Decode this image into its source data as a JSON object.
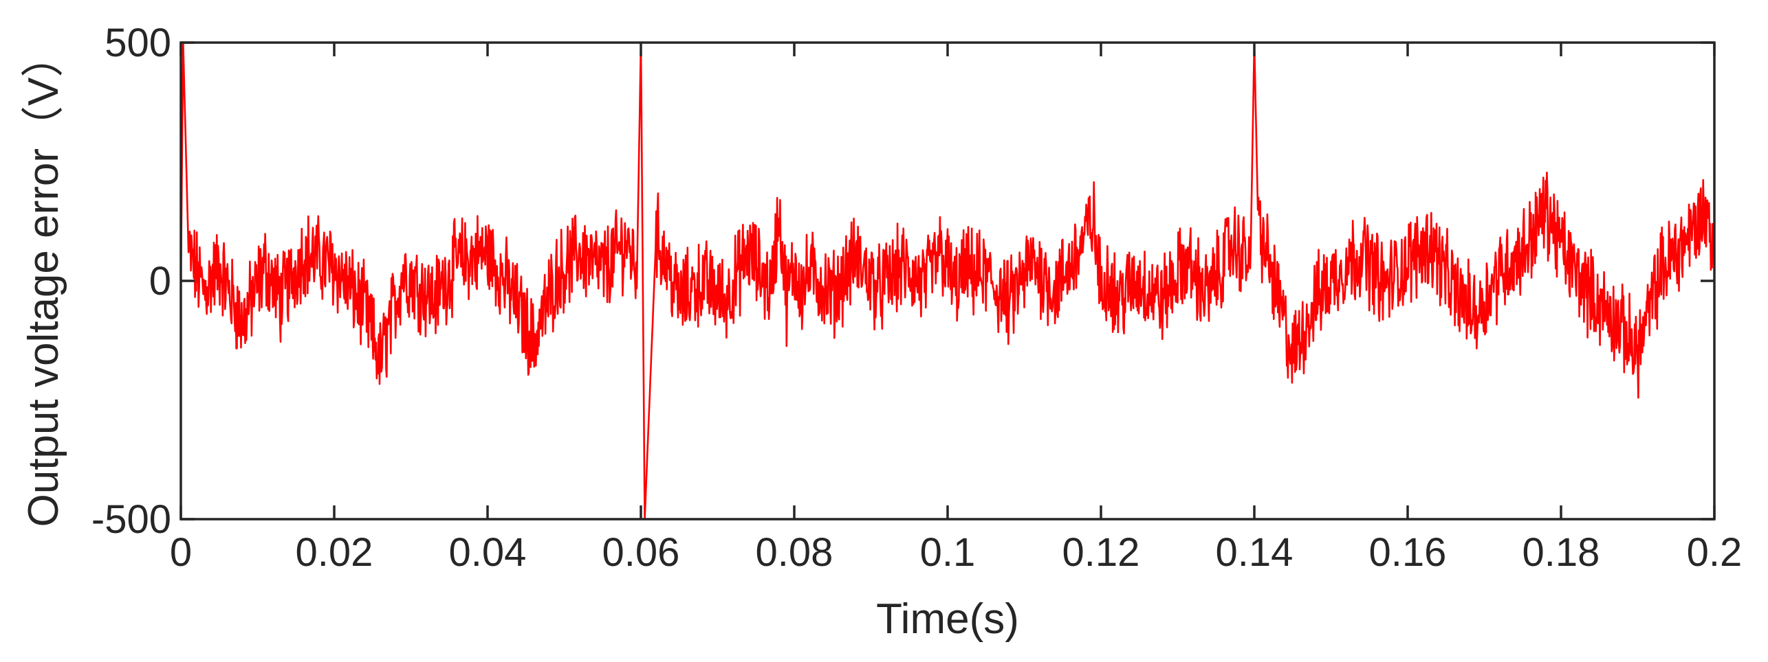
{
  "chart_data": {
    "type": "line",
    "title": "",
    "xlabel": "Time(s)",
    "ylabel": "Output voltage error（V）",
    "xlim": [
      0,
      0.2
    ],
    "ylim": [
      -500,
      500
    ],
    "xticks": [
      0,
      0.02,
      0.04,
      0.06,
      0.08,
      0.1,
      0.12,
      0.14,
      0.16,
      0.18,
      0.2
    ],
    "xtick_labels": [
      "0",
      "0.02",
      "0.04",
      "0.06",
      "0.08",
      "0.1",
      "0.12",
      "0.14",
      "0.16",
      "0.18",
      "0.2"
    ],
    "yticks": [
      -500,
      0,
      500
    ],
    "ytick_labels": [
      "-500",
      "0",
      "500"
    ],
    "grid": false,
    "legend": "none",
    "series": [
      {
        "color": "#ff0000",
        "x": [
          0,
          0.0003,
          0.001,
          0.003,
          0.005,
          0.008,
          0.011,
          0.013,
          0.016,
          0.02,
          0.024,
          0.026,
          0.029,
          0.033,
          0.036,
          0.04,
          0.043,
          0.046,
          0.049,
          0.052,
          0.055,
          0.058,
          0.0595,
          0.06,
          0.0605,
          0.062,
          0.065,
          0.068,
          0.071,
          0.074,
          0.077,
          0.078,
          0.079,
          0.08,
          0.081,
          0.082,
          0.085,
          0.088,
          0.091,
          0.094,
          0.097,
          0.099,
          0.1,
          0.101,
          0.102,
          0.105,
          0.108,
          0.111,
          0.114,
          0.117,
          0.119,
          0.12,
          0.121,
          0.122,
          0.125,
          0.128,
          0.131,
          0.134,
          0.137,
          0.1395,
          0.14,
          0.1405,
          0.142,
          0.145,
          0.148,
          0.151,
          0.154,
          0.157,
          0.16,
          0.163,
          0.166,
          0.169,
          0.172,
          0.175,
          0.178,
          0.181,
          0.184,
          0.187,
          0.19,
          0.193,
          0.196,
          0.199,
          0.2
        ],
        "y": [
          0,
          500,
          60,
          -20,
          30,
          -90,
          30,
          -40,
          60,
          30,
          -60,
          -170,
          20,
          -40,
          40,
          60,
          -20,
          -130,
          10,
          60,
          20,
          80,
          30,
          500,
          -500,
          100,
          -40,
          0,
          -40,
          60,
          -20,
          150,
          -40,
          30,
          -20,
          20,
          -30,
          50,
          -20,
          30,
          -10,
          60,
          30,
          -20,
          20,
          10,
          -50,
          40,
          -20,
          60,
          130,
          -20,
          20,
          -40,
          0,
          -40,
          40,
          -30,
          80,
          40,
          500,
          120,
          30,
          -160,
          -40,
          20,
          60,
          -10,
          40,
          80,
          -20,
          -70,
          20,
          60,
          150,
          40,
          -30,
          -80,
          -150,
          20,
          80,
          150,
          40
        ]
      }
    ]
  }
}
